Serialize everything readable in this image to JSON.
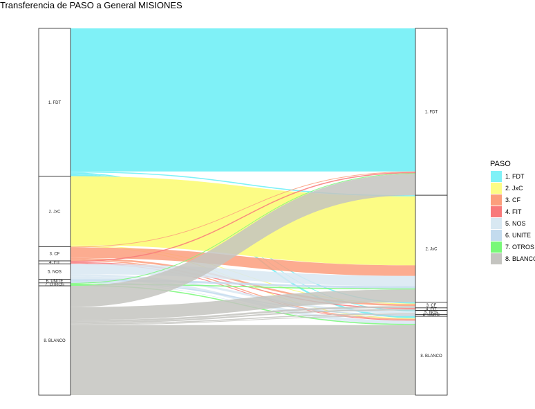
{
  "chart_data": {
    "type": "alluvial",
    "title": "Transferencia de PASO a General MISIONES",
    "axes": [
      "PASO",
      "General"
    ],
    "legend": {
      "title": "PASO",
      "placement": "right"
    },
    "categories": [
      "1. FDT",
      "2. JxC",
      "3. CF",
      "4. FIT",
      "5. NOS",
      "6. UNITE",
      "7. OTROS",
      "8. BLANCO"
    ],
    "left_labels": [
      "1. FDT",
      "2. JxC",
      "3. CF",
      "4. FIT",
      "5. NOS",
      "6. UNITE",
      "7. OTROS",
      "8. BLANCO"
    ],
    "right_labels": [
      "1. FDT",
      "2. JxC",
      "3. CF",
      "4. FIT",
      "5. NOS",
      "6. UNITE",
      "8. BLANCO"
    ],
    "right_order": [
      "1. FDT",
      "2. JxC",
      "3. CF",
      "4. FIT",
      "5. NOS",
      "6. UNITE",
      "7. OTROS",
      "8. BLANCO"
    ],
    "colors": {
      "1. FDT": "#7ff1f7",
      "2. JxC": "#fcfc85",
      "3. CF": "#fc9e7c",
      "4. FIT": "#f8797a",
      "5. NOS": "#d8e8f2",
      "6. UNITE": "#c3dbee",
      "7. OTROS": "#78f878",
      "8. BLANCO": "#c4c4c0"
    },
    "left_totals": {
      "1. FDT": 40.3,
      "2. JxC": 19.2,
      "3. CF": 3.9,
      "4. FIT": 0.8,
      "5. NOS": 4.2,
      "6. UNITE": 1.0,
      "7. OTROS": 0.8,
      "8. BLANCO": 29.8
    },
    "flows": [
      {
        "from": "1. FDT",
        "to": "1. FDT",
        "value": 39.0
      },
      {
        "from": "1. FDT",
        "to": "2. JxC",
        "value": 0.3
      },
      {
        "from": "1. FDT",
        "to": "3. CF",
        "value": 0.3
      },
      {
        "from": "1. FDT",
        "to": "5. NOS",
        "value": 0.2
      },
      {
        "from": "1. FDT",
        "to": "8. BLANCO",
        "value": 0.5
      },
      {
        "from": "2. JxC",
        "to": "2. JxC",
        "value": 18.8
      },
      {
        "from": "2. JxC",
        "to": "3. CF",
        "value": 0.2
      },
      {
        "from": "2. JxC",
        "to": "8. BLANCO",
        "value": 0.2
      },
      {
        "from": "3. CF",
        "to": "1. FDT",
        "value": 0.2
      },
      {
        "from": "3. CF",
        "to": "2. JxC",
        "value": 2.9
      },
      {
        "from": "3. CF",
        "to": "3. CF",
        "value": 0.5
      },
      {
        "from": "3. CF",
        "to": "8. BLANCO",
        "value": 0.3
      },
      {
        "from": "4. FIT",
        "to": "1. FDT",
        "value": 0.3
      },
      {
        "from": "4. FIT",
        "to": "4. FIT",
        "value": 0.3
      },
      {
        "from": "4. FIT",
        "to": "8. BLANCO",
        "value": 0.2
      },
      {
        "from": "5. NOS",
        "to": "2. JxC",
        "value": 2.8
      },
      {
        "from": "5. NOS",
        "to": "5. NOS",
        "value": 0.6
      },
      {
        "from": "5. NOS",
        "to": "8. BLANCO",
        "value": 0.8
      },
      {
        "from": "6. UNITE",
        "to": "2. JxC",
        "value": 0.6
      },
      {
        "from": "6. UNITE",
        "to": "6. UNITE",
        "value": 0.3
      },
      {
        "from": "6. UNITE",
        "to": "8. BLANCO",
        "value": 0.1
      },
      {
        "from": "7. OTROS",
        "to": "1. FDT",
        "value": 0.2
      },
      {
        "from": "7. OTROS",
        "to": "2. JxC",
        "value": 0.3
      },
      {
        "from": "7. OTROS",
        "to": "8. BLANCO",
        "value": 0.3
      },
      {
        "from": "8. BLANCO",
        "to": "1. FDT",
        "value": 5.8
      },
      {
        "from": "8. BLANCO",
        "to": "2. JxC",
        "value": 3.5
      },
      {
        "from": "8. BLANCO",
        "to": "3. CF",
        "value": 0.5
      },
      {
        "from": "8. BLANCO",
        "to": "4. FIT",
        "value": 0.4
      },
      {
        "from": "8. BLANCO",
        "to": "5. NOS",
        "value": 0.3
      },
      {
        "from": "8. BLANCO",
        "to": "6. UNITE",
        "value": 0.2
      },
      {
        "from": "8. BLANCO",
        "to": "8. BLANCO",
        "value": 19.1
      }
    ]
  }
}
